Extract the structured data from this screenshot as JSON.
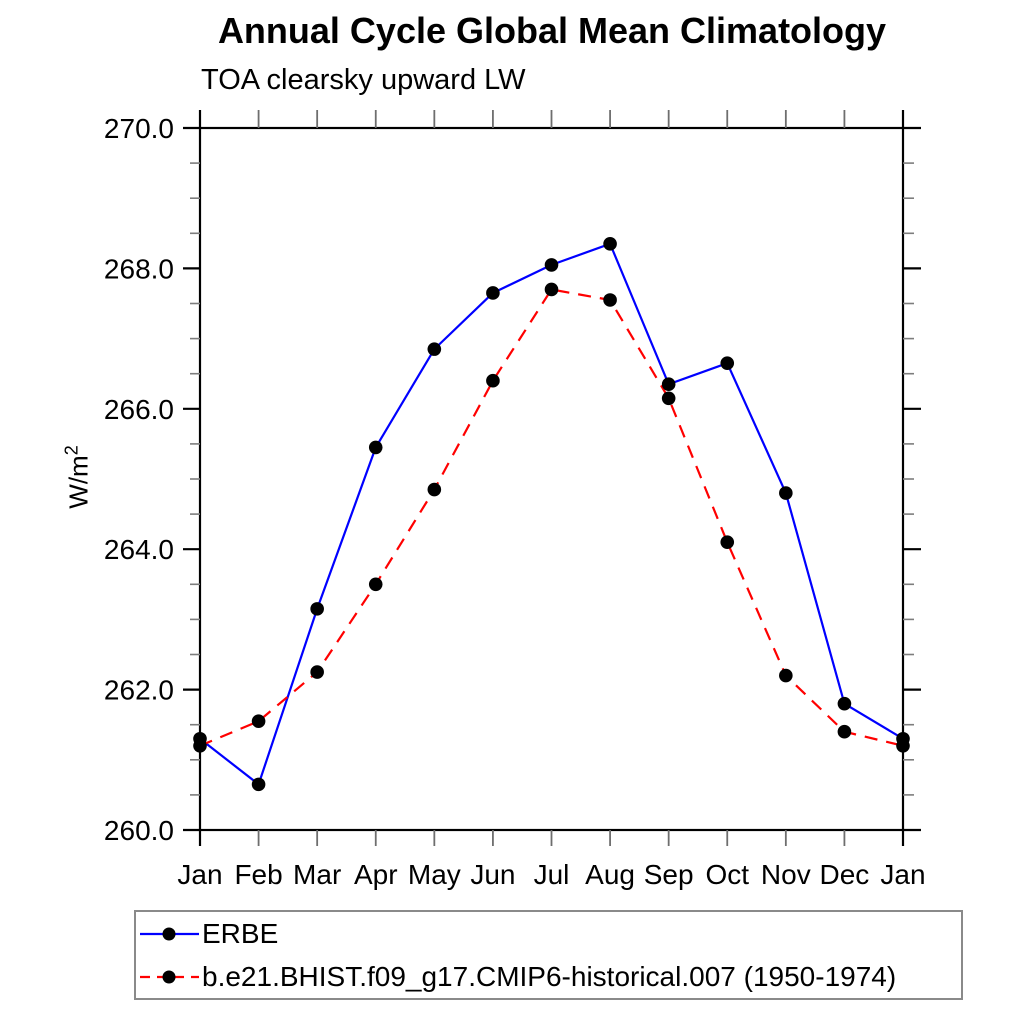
{
  "title": "Annual Cycle Global Mean Climatology",
  "subtitle": "TOA clearsky upward LW",
  "y_axis": {
    "label_base": "W/m",
    "label_exponent": "2",
    "tick_labels": [
      "270.0",
      "268.0",
      "266.0",
      "264.0",
      "262.0",
      "260.0"
    ]
  },
  "x_axis": {
    "tick_labels": [
      "Jan",
      "Feb",
      "Mar",
      "Apr",
      "May",
      "Jun",
      "Jul",
      "Aug",
      "Sep",
      "Oct",
      "Nov",
      "Dec",
      "Jan"
    ]
  },
  "chart_data": {
    "type": "line",
    "title": "Annual Cycle Global Mean Climatology",
    "subtitle": "TOA clearsky upward LW",
    "ylabel": "W/m^2",
    "categories": [
      "Jan",
      "Feb",
      "Mar",
      "Apr",
      "May",
      "Jun",
      "Jul",
      "Aug",
      "Sep",
      "Oct",
      "Nov",
      "Dec",
      "Jan"
    ],
    "ylim": [
      260.0,
      270.0
    ],
    "ytick_major_interval": 2.0,
    "ytick_minor_interval": 0.5,
    "grid": false,
    "legend_position": "bottom-left-box",
    "marker": "filled-circle",
    "marker_color": "#000000",
    "series": [
      {
        "name": "ERBE",
        "color": "#0000ff",
        "line_style": "solid",
        "values": [
          261.3,
          260.65,
          263.15,
          265.45,
          266.85,
          267.65,
          268.05,
          268.35,
          266.35,
          266.65,
          264.8,
          261.8,
          261.3
        ]
      },
      {
        "name": "b.e21.BHIST.f09_g17.CMIP6-historical.007 (1950-1974)",
        "color": "#ff0000",
        "line_style": "dashed",
        "values": [
          261.2,
          261.55,
          262.25,
          263.5,
          264.85,
          266.4,
          267.7,
          267.55,
          266.15,
          264.1,
          262.2,
          261.4,
          261.2
        ]
      }
    ]
  }
}
